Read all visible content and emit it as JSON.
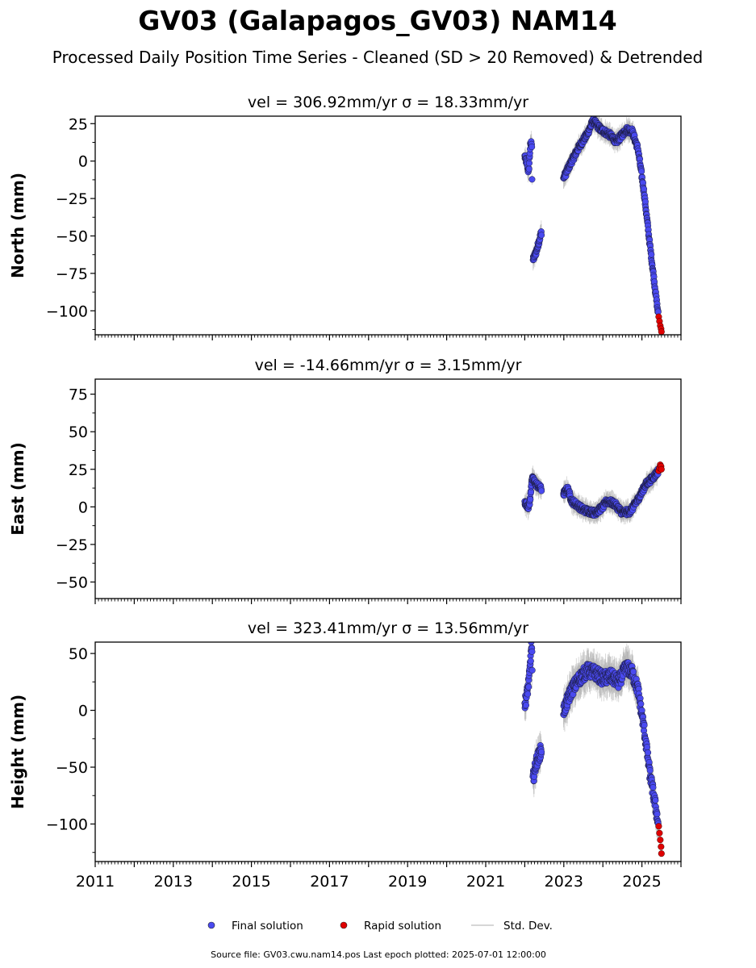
{
  "figure": {
    "title": "GV03 (Galapagos_GV03) NAM14",
    "subtitle": "Processed Daily Position Time Series - Cleaned (SD > 20 Removed) & Detrended",
    "source": "Source file: GV03.cwu.nam14.pos  Last epoch plotted: 2025-07-01 12:00:00"
  },
  "legend": {
    "final": "Final solution",
    "rapid": "Rapid solution",
    "std": "Std. Dev."
  },
  "colors": {
    "final": "#4a4af0",
    "rapid": "#e00000",
    "std": "#b0b0b0"
  },
  "chart_data": [
    {
      "type": "scatter",
      "name": "north",
      "title_vel": "vel = 306.92mm/yr",
      "title_sigma": "σ = 18.33mm/yr",
      "ylabel": "North (mm)",
      "xlim": [
        2011,
        2026
      ],
      "ylim": [
        -116,
        30
      ],
      "yticks": [
        25,
        0,
        -25,
        -50,
        -75,
        -100
      ],
      "ytick_labels": [
        "25",
        "0",
        "−25",
        "−50",
        "−75",
        "−100"
      ],
      "knots": [
        [
          2022.0,
          3
        ],
        [
          2022.06,
          -2
        ],
        [
          2022.1,
          -8
        ],
        [
          2022.14,
          10
        ],
        [
          2022.18,
          13
        ],
        [
          2022.2,
          -67
        ],
        [
          2022.3,
          -60
        ],
        [
          2022.42,
          -48
        ],
        [
          2023.0,
          -11
        ],
        [
          2023.2,
          0
        ],
        [
          2023.4,
          10
        ],
        [
          2023.6,
          18
        ],
        [
          2023.75,
          27
        ],
        [
          2023.95,
          21
        ],
        [
          2024.15,
          18
        ],
        [
          2024.35,
          13
        ],
        [
          2024.6,
          21
        ],
        [
          2024.75,
          20
        ],
        [
          2024.9,
          8
        ],
        [
          2025.05,
          -20
        ],
        [
          2025.2,
          -55
        ],
        [
          2025.35,
          -88
        ],
        [
          2025.42,
          -103
        ]
      ],
      "gaps": [
        [
          2022.19,
          2022.21
        ],
        [
          2022.43,
          2022.99
        ]
      ],
      "rapid": [
        [
          2025.43,
          -104
        ],
        [
          2025.45,
          -107
        ],
        [
          2025.47,
          -110
        ],
        [
          2025.49,
          -112
        ],
        [
          2025.5,
          -114
        ]
      ]
    },
    {
      "type": "scatter",
      "name": "east",
      "title_vel": "vel = -14.66mm/yr",
      "title_sigma": "σ = 3.15mm/yr",
      "ylabel": "East (mm)",
      "xlim": [
        2011,
        2026
      ],
      "ylim": [
        -61,
        85
      ],
      "yticks": [
        75,
        50,
        25,
        0,
        -25,
        -50
      ],
      "ytick_labels": [
        "75",
        "50",
        "25",
        "0",
        "−25",
        "−50"
      ],
      "knots": [
        [
          2022.0,
          3
        ],
        [
          2022.1,
          0
        ],
        [
          2022.14,
          5
        ],
        [
          2022.18,
          19
        ],
        [
          2022.3,
          15
        ],
        [
          2022.42,
          12
        ],
        [
          2023.0,
          9
        ],
        [
          2023.1,
          12
        ],
        [
          2023.2,
          4
        ],
        [
          2023.5,
          -2
        ],
        [
          2023.8,
          -4
        ],
        [
          2024.0,
          0
        ],
        [
          2024.1,
          4
        ],
        [
          2024.3,
          2
        ],
        [
          2024.5,
          -4
        ],
        [
          2024.7,
          -3
        ],
        [
          2024.9,
          5
        ],
        [
          2025.1,
          15
        ],
        [
          2025.3,
          20
        ],
        [
          2025.42,
          24
        ]
      ],
      "gaps": [
        [
          2022.43,
          2022.99
        ]
      ],
      "rapid": [
        [
          2025.43,
          24
        ],
        [
          2025.45,
          26
        ],
        [
          2025.47,
          28
        ],
        [
          2025.49,
          27
        ],
        [
          2025.5,
          25
        ]
      ]
    },
    {
      "type": "scatter",
      "name": "height",
      "title_vel": "vel = 323.41mm/yr",
      "title_sigma": "σ = 13.56mm/yr",
      "ylabel": "Height (mm)",
      "xlim": [
        2011,
        2026
      ],
      "ylim": [
        -133,
        60
      ],
      "yticks": [
        50,
        0,
        -50,
        -100
      ],
      "ytick_labels": [
        "50",
        "0",
        "−50",
        "−100"
      ],
      "xticks": [
        2011,
        2013,
        2015,
        2017,
        2019,
        2021,
        2023,
        2025
      ],
      "xtick_labels": [
        "2011",
        "2013",
        "2015",
        "2017",
        "2019",
        "2021",
        "2023",
        "2025"
      ],
      "knots": [
        [
          2022.0,
          5
        ],
        [
          2022.06,
          15
        ],
        [
          2022.12,
          30
        ],
        [
          2022.17,
          58
        ],
        [
          2022.19,
          48
        ],
        [
          2022.2,
          -62
        ],
        [
          2022.3,
          -45
        ],
        [
          2022.42,
          -35
        ],
        [
          2023.0,
          0
        ],
        [
          2023.2,
          18
        ],
        [
          2023.4,
          28
        ],
        [
          2023.6,
          35
        ],
        [
          2023.8,
          33
        ],
        [
          2024.0,
          28
        ],
        [
          2024.2,
          30
        ],
        [
          2024.4,
          25
        ],
        [
          2024.6,
          38
        ],
        [
          2024.75,
          33
        ],
        [
          2024.9,
          18
        ],
        [
          2025.05,
          -15
        ],
        [
          2025.2,
          -55
        ],
        [
          2025.35,
          -85
        ],
        [
          2025.42,
          -100
        ]
      ],
      "gaps": [
        [
          2022.195,
          2022.205
        ],
        [
          2022.43,
          2022.99
        ]
      ],
      "rapid": [
        [
          2025.43,
          -102
        ],
        [
          2025.45,
          -108
        ],
        [
          2025.47,
          -114
        ],
        [
          2025.49,
          -120
        ],
        [
          2025.5,
          -126
        ]
      ]
    }
  ]
}
